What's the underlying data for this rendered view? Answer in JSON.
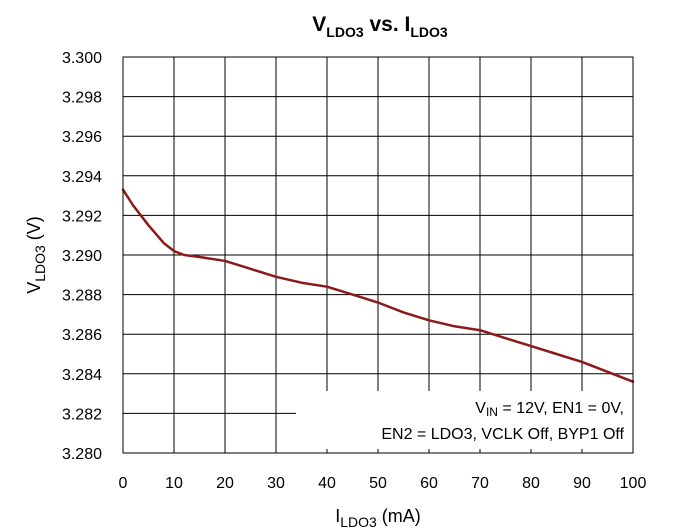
{
  "chart_data": {
    "type": "line",
    "title": {
      "base": "V",
      "sub": "LDO3",
      "mid": " vs. ",
      "base2": "I",
      "sub2": "LDO3"
    },
    "xlabel": {
      "base": "I",
      "sub": "LDO3",
      "suffix": " (mA)"
    },
    "ylabel": {
      "base": "V",
      "sub": "LDO3",
      "suffix": " (V)"
    },
    "xlim": [
      0,
      100
    ],
    "ylim": [
      3.28,
      3.3
    ],
    "x_ticks": [
      "0",
      "10",
      "20",
      "30",
      "40",
      "50",
      "60",
      "70",
      "80",
      "90",
      "100"
    ],
    "y_ticks": [
      "3.280",
      "3.282",
      "3.284",
      "3.286",
      "3.288",
      "3.290",
      "3.292",
      "3.294",
      "3.296",
      "3.298",
      "3.300"
    ],
    "grid": true,
    "series": [
      {
        "color": "#8b1a1a",
        "x": [
          0,
          2,
          5,
          8,
          10,
          12,
          15,
          20,
          25,
          30,
          35,
          40,
          45,
          50,
          55,
          60,
          65,
          70,
          75,
          80,
          85,
          90,
          95,
          100
        ],
        "y": [
          3.2933,
          3.2925,
          3.2915,
          3.2906,
          3.2902,
          3.29,
          3.2899,
          3.2897,
          3.2893,
          3.2889,
          3.2886,
          3.2884,
          3.288,
          3.2876,
          3.2871,
          3.2867,
          3.2864,
          3.2862,
          3.2858,
          3.2854,
          3.285,
          3.2846,
          3.2841,
          3.2836
        ]
      }
    ],
    "annotation": {
      "line1": {
        "base": "V",
        "sub": "IN",
        "rest": " = 12V, EN1 = 0V,"
      },
      "line2": "EN2 = LDO3, VCLK Off, BYP1 Off"
    }
  }
}
